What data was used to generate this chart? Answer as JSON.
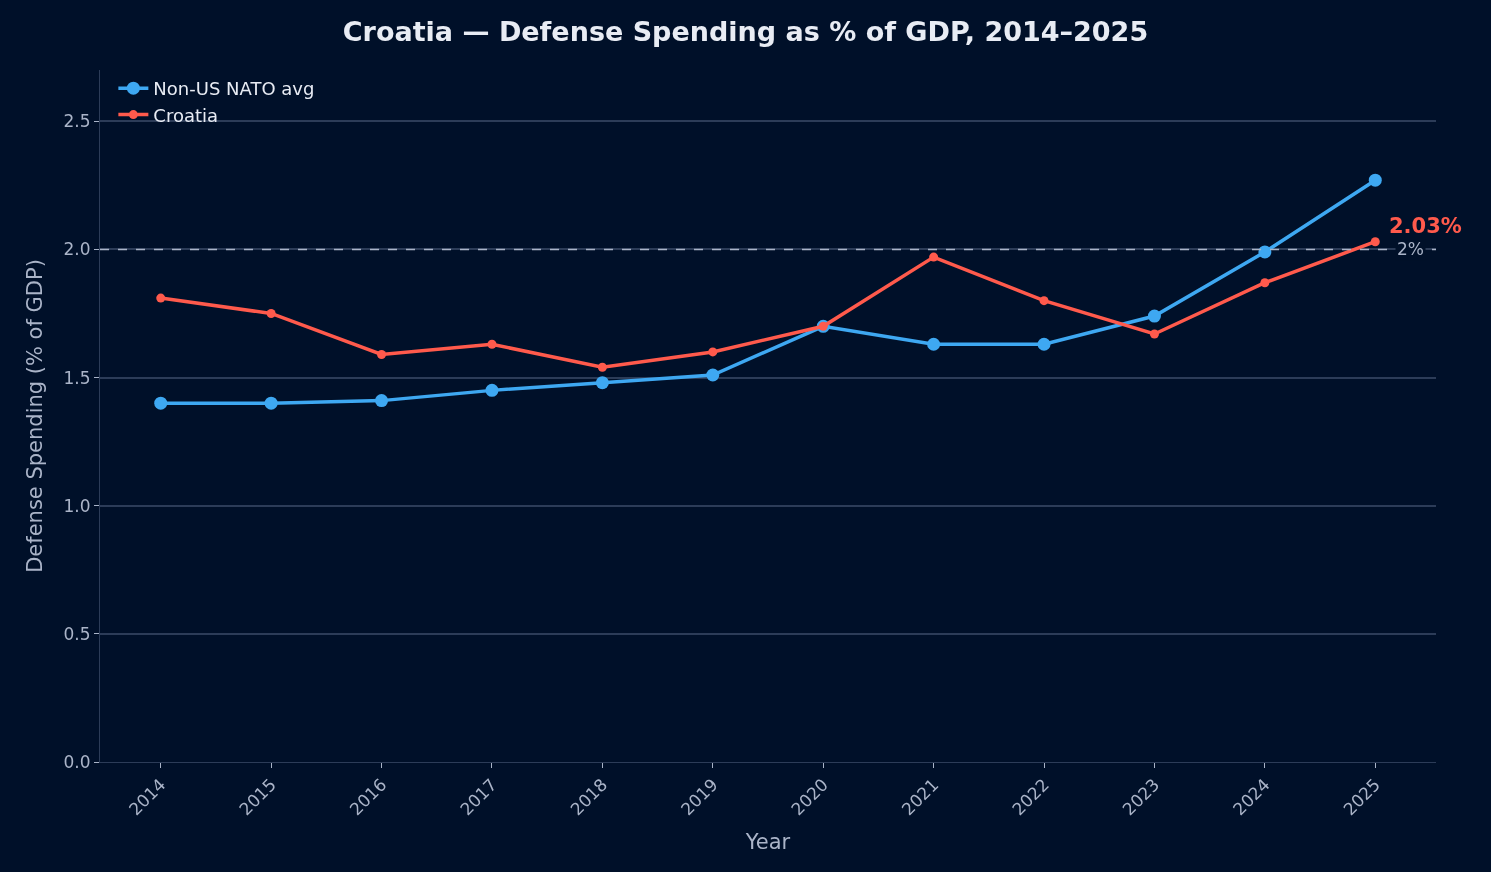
{
  "chart_data": {
    "type": "line",
    "title": "Croatia — Defense Spending as % of GDP, 2014–2025",
    "xlabel": "Year",
    "ylabel": "Defense Spending (% of GDP)",
    "categories": [
      "2014",
      "2015",
      "2016",
      "2017",
      "2018",
      "2019",
      "2020",
      "2021",
      "2022",
      "2023",
      "2024",
      "2025"
    ],
    "series": [
      {
        "name": "Non-US NATO avg",
        "color": "#3ea8f2",
        "values": [
          1.4,
          1.4,
          1.41,
          1.45,
          1.48,
          1.51,
          1.7,
          1.63,
          1.63,
          1.74,
          1.99,
          2.27
        ]
      },
      {
        "name": "Croatia",
        "color": "#ff5a4c",
        "values": [
          1.81,
          1.75,
          1.59,
          1.63,
          1.54,
          1.6,
          1.7,
          1.97,
          1.8,
          1.67,
          1.87,
          2.03
        ]
      }
    ],
    "ylim": [
      0,
      2.7
    ],
    "yticks": [
      {
        "value": 0,
        "label": "0.0"
      },
      0.5,
      {
        "value": 1,
        "label": "1.0"
      },
      1.5,
      {
        "value": 2,
        "label": "2.0"
      },
      2.5
    ],
    "ref_lines": [
      {
        "axis": "y",
        "value": 2,
        "label": "2%",
        "color": "#aab4c8",
        "line_style": "dashed"
      }
    ],
    "annotations": [
      {
        "text": "2.03%",
        "x": "2025",
        "y": 2.03
      }
    ],
    "grid": "y",
    "legend": "top left",
    "marker": "circle",
    "line_style": "solid"
  }
}
